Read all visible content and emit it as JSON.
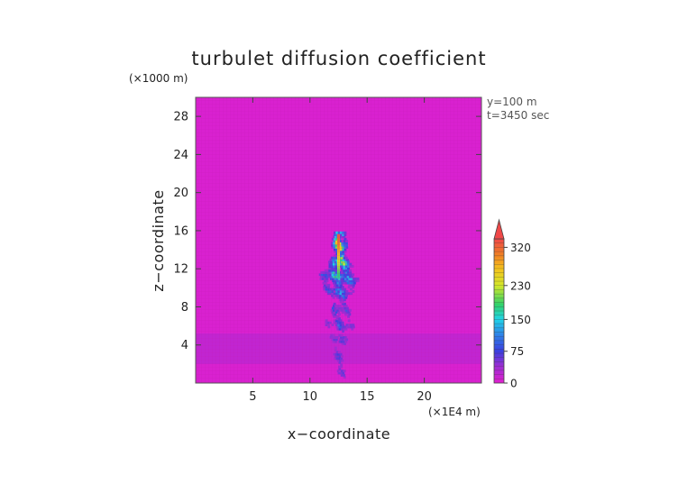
{
  "chart_data": {
    "type": "heatmap",
    "title": "turbulet diffusion coefficient",
    "xlabel": "x−coordinate",
    "ylabel": "z−coordinate",
    "x_unit": "(×1E4 m)",
    "y_unit": "(×1000 m)",
    "x_range": [
      0,
      25
    ],
    "y_range": [
      0,
      30
    ],
    "x_ticks": [
      5,
      10,
      15,
      20
    ],
    "y_ticks": [
      4,
      8,
      12,
      16,
      20,
      24,
      28
    ],
    "annotations": [
      "y=100  m",
      "t=3450 sec"
    ],
    "colorbar": {
      "range": [
        0,
        340
      ],
      "tick_values": [
        0,
        75,
        150,
        230,
        320
      ],
      "tick_labels": [
        "0",
        "75",
        "150",
        "230",
        "320"
      ],
      "stops": [
        {
          "v": 0,
          "color": "#e21fcf"
        },
        {
          "v": 40,
          "color": "#9b2ed3"
        },
        {
          "v": 75,
          "color": "#3b3fe0"
        },
        {
          "v": 110,
          "color": "#2f7ce8"
        },
        {
          "v": 150,
          "color": "#20d3e8"
        },
        {
          "v": 185,
          "color": "#31d36a"
        },
        {
          "v": 230,
          "color": "#d4e82a"
        },
        {
          "v": 270,
          "color": "#f5c21c"
        },
        {
          "v": 300,
          "color": "#f08424"
        },
        {
          "v": 340,
          "color": "#f04848"
        }
      ]
    },
    "background_value": 5,
    "boundary_layer": {
      "z_min": 2,
      "z_max": 5.2,
      "value": 30
    },
    "plume": {
      "x_center": 12.5,
      "z_top": 15.8,
      "core_profile": [
        {
          "z": 15.5,
          "v": 330,
          "w": 0.25
        },
        {
          "z": 14.5,
          "v": 305,
          "w": 0.5
        },
        {
          "z": 13.0,
          "v": 250,
          "w": 0.8
        },
        {
          "z": 11.5,
          "v": 190,
          "w": 0.95
        },
        {
          "z": 10.0,
          "v": 140,
          "w": 1.0
        },
        {
          "z": 8.0,
          "v": 100,
          "w": 0.9
        },
        {
          "z": 6.0,
          "v": 85,
          "w": 0.75
        },
        {
          "z": 4.0,
          "v": 80,
          "w": 0.7
        },
        {
          "z": 2.0,
          "v": 70,
          "w": 0.55
        },
        {
          "z": 0.8,
          "v": 60,
          "w": 0.4
        }
      ]
    }
  }
}
